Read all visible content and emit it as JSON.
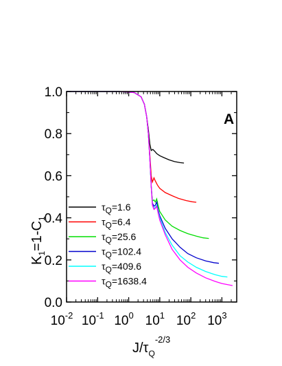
{
  "chart_data": {
    "type": "line",
    "panel_label": "A",
    "x_scale": "log",
    "xlim": [
      0.01,
      3000
    ],
    "ylim": [
      0.0,
      1.0
    ],
    "xlabel": {
      "main": "J/τ",
      "sub": "Q",
      "sup": "-2/3"
    },
    "ylabel": {
      "part1": "K",
      "sub1": "1",
      "part2": "=1-C",
      "sub2": "1"
    },
    "x_ticks": [
      {
        "value": 0.01,
        "base": "10",
        "exp": "-2"
      },
      {
        "value": 0.1,
        "base": "10",
        "exp": "-1"
      },
      {
        "value": 1,
        "base": "10",
        "exp": "0"
      },
      {
        "value": 10,
        "base": "10",
        "exp": "1"
      },
      {
        "value": 100,
        "base": "10",
        "exp": "2"
      },
      {
        "value": 1000,
        "base": "10",
        "exp": "3"
      }
    ],
    "y_ticks": [
      {
        "value": 0.0,
        "label": "0.0"
      },
      {
        "value": 0.2,
        "label": "0.2"
      },
      {
        "value": 0.4,
        "label": "0.4"
      },
      {
        "value": 0.6,
        "label": "0.6"
      },
      {
        "value": 0.8,
        "label": "0.8"
      },
      {
        "value": 1.0,
        "label": "1.0"
      }
    ],
    "legend_position": "bottom-left",
    "series": [
      {
        "name_main": "τ",
        "name_sub": "Q",
        "name_value": "=1.6",
        "color": "#000000",
        "points": [
          [
            0.01,
            1.0
          ],
          [
            0.5,
            1.0
          ],
          [
            1.5,
            0.995
          ],
          [
            2.5,
            0.975
          ],
          [
            3.2,
            0.94
          ],
          [
            3.8,
            0.88
          ],
          [
            4.3,
            0.82
          ],
          [
            4.8,
            0.75
          ],
          [
            5.3,
            0.72
          ],
          [
            6,
            0.725
          ],
          [
            7,
            0.715
          ],
          [
            8,
            0.705
          ],
          [
            10,
            0.695
          ],
          [
            14,
            0.685
          ],
          [
            20,
            0.675
          ],
          [
            30,
            0.667
          ],
          [
            45,
            0.662
          ],
          [
            60,
            0.66
          ]
        ]
      },
      {
        "name_main": "τ",
        "name_sub": "Q",
        "name_value": "=6.4",
        "color": "#ff0000",
        "points": [
          [
            0.01,
            1.0
          ],
          [
            0.5,
            1.0
          ],
          [
            1.5,
            0.995
          ],
          [
            2.5,
            0.975
          ],
          [
            3.2,
            0.94
          ],
          [
            3.8,
            0.88
          ],
          [
            4.3,
            0.8
          ],
          [
            4.8,
            0.7
          ],
          [
            5.3,
            0.6
          ],
          [
            5.8,
            0.57
          ],
          [
            6.5,
            0.59
          ],
          [
            7.2,
            0.575
          ],
          [
            8.5,
            0.555
          ],
          [
            10,
            0.54
          ],
          [
            15,
            0.52
          ],
          [
            25,
            0.505
          ],
          [
            40,
            0.492
          ],
          [
            70,
            0.482
          ],
          [
            110,
            0.476
          ],
          [
            150,
            0.474
          ]
        ]
      },
      {
        "name_main": "τ",
        "name_sub": "Q",
        "name_value": "=25.6",
        "color": "#00dd00",
        "points": [
          [
            0.01,
            1.0
          ],
          [
            0.5,
            1.0
          ],
          [
            1.5,
            0.995
          ],
          [
            2.5,
            0.975
          ],
          [
            3.2,
            0.94
          ],
          [
            3.8,
            0.88
          ],
          [
            4.3,
            0.8
          ],
          [
            4.8,
            0.68
          ],
          [
            5.3,
            0.55
          ],
          [
            5.8,
            0.48
          ],
          [
            6.5,
            0.485
          ],
          [
            7.2,
            0.475
          ],
          [
            8,
            0.49
          ],
          [
            8.8,
            0.46
          ],
          [
            10,
            0.43
          ],
          [
            15,
            0.39
          ],
          [
            25,
            0.36
          ],
          [
            45,
            0.34
          ],
          [
            80,
            0.325
          ],
          [
            150,
            0.313
          ],
          [
            250,
            0.305
          ],
          [
            380,
            0.302
          ]
        ]
      },
      {
        "name_main": "τ",
        "name_sub": "Q",
        "name_value": "=102.4",
        "color": "#0000cc",
        "points": [
          [
            0.01,
            1.0
          ],
          [
            0.5,
            1.0
          ],
          [
            1.5,
            0.995
          ],
          [
            2.5,
            0.975
          ],
          [
            3.2,
            0.94
          ],
          [
            3.8,
            0.88
          ],
          [
            4.3,
            0.8
          ],
          [
            4.8,
            0.68
          ],
          [
            5.3,
            0.55
          ],
          [
            5.8,
            0.47
          ],
          [
            6.5,
            0.455
          ],
          [
            7.2,
            0.46
          ],
          [
            8,
            0.475
          ],
          [
            8.8,
            0.44
          ],
          [
            10,
            0.41
          ],
          [
            15,
            0.35
          ],
          [
            25,
            0.3
          ],
          [
            45,
            0.26
          ],
          [
            80,
            0.23
          ],
          [
            150,
            0.21
          ],
          [
            300,
            0.195
          ],
          [
            550,
            0.187
          ],
          [
            800,
            0.184
          ]
        ]
      },
      {
        "name_main": "τ",
        "name_sub": "Q",
        "name_value": "=409.6",
        "color": "#00ffff",
        "points": [
          [
            0.01,
            1.0
          ],
          [
            0.5,
            1.0
          ],
          [
            1.5,
            0.995
          ],
          [
            2.5,
            0.975
          ],
          [
            3.2,
            0.94
          ],
          [
            3.8,
            0.88
          ],
          [
            4.3,
            0.8
          ],
          [
            4.8,
            0.68
          ],
          [
            5.3,
            0.55
          ],
          [
            5.8,
            0.46
          ],
          [
            6.5,
            0.445
          ],
          [
            7.2,
            0.45
          ],
          [
            8,
            0.46
          ],
          [
            8.8,
            0.43
          ],
          [
            10,
            0.4
          ],
          [
            15,
            0.33
          ],
          [
            25,
            0.27
          ],
          [
            45,
            0.22
          ],
          [
            80,
            0.19
          ],
          [
            150,
            0.165
          ],
          [
            300,
            0.145
          ],
          [
            600,
            0.13
          ],
          [
            1000,
            0.122
          ],
          [
            1500,
            0.119
          ]
        ]
      },
      {
        "name_main": "τ",
        "name_sub": "Q",
        "name_value": "=1638.4",
        "color": "#ff00ff",
        "points": [
          [
            0.01,
            1.0
          ],
          [
            0.5,
            1.0
          ],
          [
            1.5,
            0.995
          ],
          [
            2.5,
            0.975
          ],
          [
            3.2,
            0.94
          ],
          [
            3.8,
            0.88
          ],
          [
            4.3,
            0.8
          ],
          [
            4.8,
            0.68
          ],
          [
            5.3,
            0.55
          ],
          [
            5.8,
            0.46
          ],
          [
            6.5,
            0.44
          ],
          [
            7.2,
            0.445
          ],
          [
            8,
            0.455
          ],
          [
            8.8,
            0.425
          ],
          [
            10,
            0.39
          ],
          [
            15,
            0.32
          ],
          [
            25,
            0.25
          ],
          [
            45,
            0.2
          ],
          [
            80,
            0.165
          ],
          [
            150,
            0.138
          ],
          [
            300,
            0.115
          ],
          [
            600,
            0.098
          ],
          [
            1000,
            0.088
          ],
          [
            1600,
            0.082
          ],
          [
            2200,
            0.078
          ]
        ]
      }
    ]
  }
}
